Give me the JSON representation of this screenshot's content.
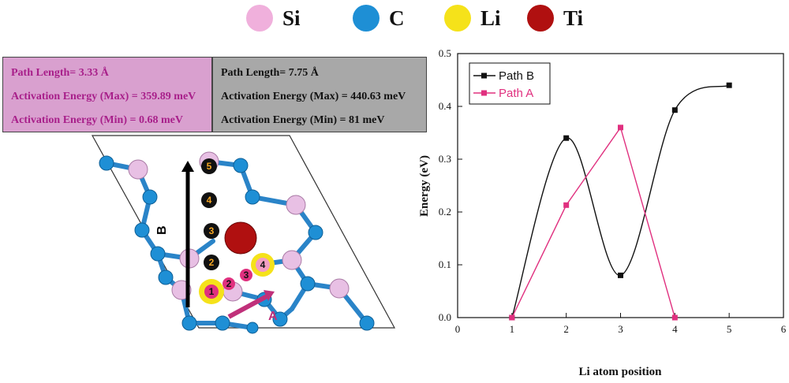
{
  "atom_legend": [
    {
      "label": "Si",
      "color": "#f0b0dc"
    },
    {
      "label": "C",
      "color": "#1e8fd5"
    },
    {
      "label": "Li",
      "color": "#f5e21a"
    },
    {
      "label": "Ti",
      "color": "#b01010"
    }
  ],
  "path_a_box": {
    "line1": "Path Length= 3.33 Å",
    "line2": "Activation Energy (Max) = 359.89 meV",
    "line3": "Activation Energy (Min) = 0.68 meV"
  },
  "path_b_box": {
    "line1": "Path Length= 7.75 Å",
    "line2": "Activation Energy (Max) = 440.63 meV",
    "line3": "Activation Energy (Min) = 81 meV"
  },
  "structure": {
    "arrow_b_label": "B",
    "arrow_a_label": "A",
    "path_b_sites": [
      "1",
      "2",
      "3",
      "4",
      "5"
    ],
    "path_a_sites": [
      "1",
      "2",
      "3",
      "4"
    ]
  },
  "chart_data": {
    "type": "line",
    "xlabel": "Li atom position",
    "ylabel": "Energy (eV)",
    "xlim": [
      0,
      6
    ],
    "ylim": [
      0,
      0.5
    ],
    "xticks": [
      0,
      1,
      2,
      3,
      4,
      5,
      6
    ],
    "yticks": [
      0.0,
      0.1,
      0.2,
      0.3,
      0.4,
      0.5
    ],
    "legend_position": "top-left",
    "series": [
      {
        "name": "Path B",
        "color": "#111111",
        "x": [
          1,
          2,
          3,
          4,
          5
        ],
        "y": [
          0.0,
          0.34,
          0.08,
          0.393,
          0.44
        ]
      },
      {
        "name": "Path A",
        "color": "#e0307f",
        "x": [
          1,
          2,
          3,
          4
        ],
        "y": [
          0.0,
          0.213,
          0.36,
          0.0
        ]
      }
    ]
  }
}
